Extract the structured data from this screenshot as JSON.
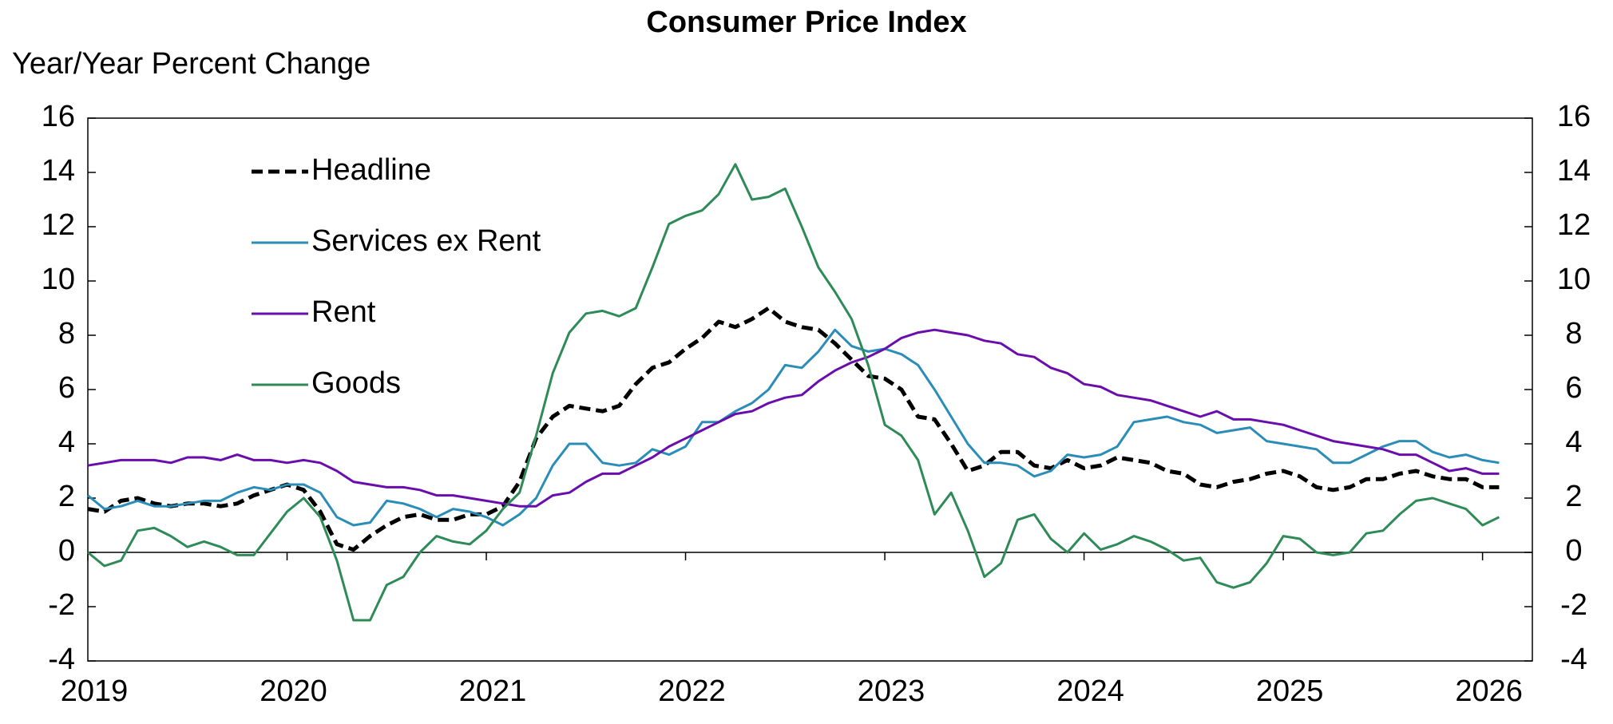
{
  "chart_data": {
    "type": "line",
    "title": "Consumer Price Index",
    "y_axis_label": "Year/Year Percent Change",
    "categories": [
      "2019",
      null,
      null,
      null,
      null,
      null,
      null,
      null,
      null,
      null,
      null,
      null,
      "2020",
      null,
      null,
      null,
      null,
      null,
      null,
      null,
      null,
      null,
      null,
      null,
      "2021",
      null,
      null,
      null,
      null,
      null,
      null,
      null,
      null,
      null,
      null,
      null,
      "2022",
      null,
      null,
      null,
      null,
      null,
      null,
      null,
      null,
      null,
      null,
      null,
      "2023",
      null,
      null,
      null,
      null,
      null,
      null,
      null,
      null,
      null,
      null,
      null,
      "2024",
      null,
      null,
      null,
      null,
      null,
      null,
      null,
      null,
      null,
      null,
      null,
      "2025",
      null,
      null,
      null,
      null,
      null,
      null,
      null,
      null,
      null,
      null,
      null,
      "2026",
      null
    ],
    "series": [
      {
        "name": "Headline",
        "color": "#000000",
        "dashed": true,
        "values": [
          1.6,
          1.5,
          1.9,
          2.0,
          1.8,
          1.7,
          1.8,
          1.8,
          1.7,
          1.8,
          2.1,
          2.3,
          2.5,
          2.3,
          1.5,
          0.3,
          0.1,
          0.6,
          1.0,
          1.3,
          1.4,
          1.2,
          1.2,
          1.4,
          1.4,
          1.7,
          2.6,
          4.2,
          5.0,
          5.4,
          5.3,
          5.2,
          5.4,
          6.2,
          6.8,
          7.0,
          7.5,
          7.9,
          8.5,
          8.3,
          8.6,
          9.0,
          8.5,
          8.3,
          8.2,
          7.7,
          7.1,
          6.5,
          6.4,
          6.0,
          5.0,
          4.9,
          4.0,
          3.0,
          3.2,
          3.7,
          3.7,
          3.2,
          3.1,
          3.4,
          3.1,
          3.2,
          3.5,
          3.4,
          3.3,
          3.0,
          2.9,
          2.5,
          2.4,
          2.6,
          2.7,
          2.9,
          3.0,
          2.8,
          2.4,
          2.3,
          2.4,
          2.7,
          2.7,
          2.9,
          3.0,
          2.8,
          2.7,
          2.7,
          2.4,
          2.4
        ]
      },
      {
        "name": "Services ex Rent",
        "color": "#2a8db8",
        "dashed": false,
        "values": [
          2.1,
          1.6,
          1.7,
          1.9,
          1.7,
          1.7,
          1.8,
          1.9,
          1.9,
          2.2,
          2.4,
          2.3,
          2.5,
          2.5,
          2.2,
          1.3,
          1.0,
          1.1,
          1.9,
          1.8,
          1.6,
          1.3,
          1.6,
          1.5,
          1.3,
          1.0,
          1.4,
          2.0,
          3.2,
          4.0,
          4.0,
          3.3,
          3.2,
          3.3,
          3.8,
          3.6,
          3.9,
          4.8,
          4.8,
          5.2,
          5.5,
          6.0,
          6.9,
          6.8,
          7.4,
          8.2,
          7.6,
          7.4,
          7.5,
          7.3,
          6.9,
          6.0,
          5.0,
          4.0,
          3.3,
          3.3,
          3.2,
          2.8,
          3.0,
          3.6,
          3.5,
          3.6,
          3.9,
          4.8,
          4.9,
          5.0,
          4.8,
          4.7,
          4.4,
          4.5,
          4.6,
          4.1,
          4.0,
          3.9,
          3.8,
          3.3,
          3.3,
          3.6,
          3.9,
          4.1,
          4.1,
          3.7,
          3.5,
          3.6,
          3.4,
          3.3
        ]
      },
      {
        "name": "Rent",
        "color": "#6a0dad",
        "dashed": false,
        "values": [
          3.2,
          3.3,
          3.4,
          3.4,
          3.4,
          3.3,
          3.5,
          3.5,
          3.4,
          3.6,
          3.4,
          3.4,
          3.3,
          3.4,
          3.3,
          3.0,
          2.6,
          2.5,
          2.4,
          2.4,
          2.3,
          2.1,
          2.1,
          2.0,
          1.9,
          1.8,
          1.7,
          1.7,
          2.1,
          2.2,
          2.6,
          2.9,
          2.9,
          3.2,
          3.5,
          3.9,
          4.2,
          4.5,
          4.8,
          5.1,
          5.2,
          5.5,
          5.7,
          5.8,
          6.3,
          6.7,
          7.0,
          7.2,
          7.5,
          7.9,
          8.1,
          8.2,
          8.1,
          8.0,
          7.8,
          7.7,
          7.3,
          7.2,
          6.8,
          6.6,
          6.2,
          6.1,
          5.8,
          5.7,
          5.6,
          5.4,
          5.2,
          5.0,
          5.2,
          4.9,
          4.9,
          4.8,
          4.7,
          4.5,
          4.3,
          4.1,
          4.0,
          3.9,
          3.8,
          3.6,
          3.6,
          3.3,
          3.0,
          3.1,
          2.9,
          2.9
        ]
      },
      {
        "name": "Goods",
        "color": "#2e8b57",
        "dashed": false,
        "values": [
          0.0,
          -0.5,
          -0.3,
          0.8,
          0.9,
          0.6,
          0.2,
          0.4,
          0.2,
          -0.1,
          -0.1,
          0.7,
          1.5,
          2.0,
          1.3,
          -0.3,
          -2.5,
          -2.5,
          -1.2,
          -0.9,
          0.0,
          0.6,
          0.4,
          0.3,
          0.8,
          1.6,
          2.2,
          4.3,
          6.6,
          8.1,
          8.8,
          8.9,
          8.7,
          9.0,
          10.5,
          12.1,
          12.4,
          12.6,
          13.2,
          14.3,
          13.0,
          13.1,
          13.4,
          12.0,
          10.5,
          9.6,
          8.6,
          6.9,
          4.7,
          4.3,
          3.4,
          1.4,
          2.2,
          0.8,
          -0.9,
          -0.4,
          1.2,
          1.4,
          0.5,
          0.0,
          0.7,
          0.1,
          0.3,
          0.6,
          0.4,
          0.1,
          -0.3,
          -0.2,
          -1.1,
          -1.3,
          -1.1,
          -0.4,
          0.6,
          0.5,
          0.0,
          -0.1,
          0.0,
          0.7,
          0.8,
          1.4,
          1.9,
          2.0,
          1.8,
          1.6,
          1.0,
          1.3
        ]
      }
    ],
    "ylim": [
      -4,
      16
    ],
    "yticks": [
      -4,
      -2,
      0,
      2,
      4,
      6,
      8,
      10,
      12,
      14,
      16
    ],
    "y2lim": [
      -4,
      16
    ],
    "y2ticks": [
      -4,
      -2,
      0,
      2,
      4,
      6,
      8,
      10,
      12,
      14,
      16
    ],
    "grid": false,
    "legend": "upper left"
  }
}
